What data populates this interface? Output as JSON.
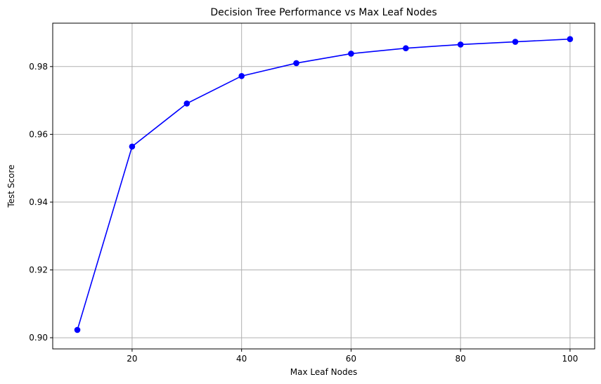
{
  "chart_data": {
    "type": "line",
    "title": "Decision Tree Performance vs Max Leaf Nodes",
    "xlabel": "Max Leaf Nodes",
    "ylabel": "Test Score",
    "x": [
      10,
      20,
      30,
      40,
      50,
      60,
      70,
      80,
      90,
      100
    ],
    "series": [
      {
        "values": [
          0.9023,
          0.9564,
          0.9691,
          0.9772,
          0.981,
          0.9838,
          0.9854,
          0.9865,
          0.9873,
          0.9881
        ]
      }
    ],
    "xlim": [
      5.5,
      104.5
    ],
    "ylim": [
      0.8967,
      0.9928
    ],
    "xticks": [
      20,
      40,
      60,
      80,
      100
    ],
    "yticks": [
      0.9,
      0.92,
      0.94,
      0.96,
      0.98
    ],
    "xtick_labels": [
      "20",
      "40",
      "60",
      "80",
      "100"
    ],
    "ytick_labels": [
      "0.90",
      "0.92",
      "0.94",
      "0.96",
      "0.98"
    ],
    "grid": true,
    "line_color": "#0000ff",
    "marker": "circle",
    "grid_color": "#b0b0b0",
    "legend": "none"
  }
}
